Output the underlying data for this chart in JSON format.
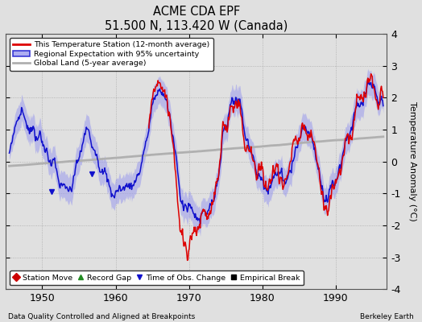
{
  "title": "ACME CDA EPF",
  "subtitle": "51.500 N, 113.420 W (Canada)",
  "xlabel_note": "Data Quality Controlled and Aligned at Breakpoints",
  "credit": "Berkeley Earth",
  "ylabel": "Temperature Anomaly (°C)",
  "xlim": [
    1945,
    1997
  ],
  "ylim": [
    -4,
    4
  ],
  "yticks": [
    -4,
    -3,
    -2,
    -1,
    0,
    1,
    2,
    3,
    4
  ],
  "xticks": [
    1950,
    1960,
    1970,
    1980,
    1990
  ],
  "bg_color": "#e0e0e0",
  "plot_bg_color": "#e0e0e0",
  "station_color": "#dd0000",
  "regional_color": "#1111cc",
  "regional_fill_color": "#9999ee",
  "global_color": "#b0b0b0",
  "legend_items": [
    {
      "label": "This Temperature Station (12-month average)"
    },
    {
      "label": "Regional Expectation with 95% uncertainty"
    },
    {
      "label": "Global Land (5-year average)"
    }
  ],
  "marker_items": [
    {
      "label": "Station Move",
      "color": "#cc0000",
      "marker": "D"
    },
    {
      "label": "Record Gap",
      "color": "#228B22",
      "marker": "^"
    },
    {
      "label": "Time of Obs. Change",
      "color": "#1111cc",
      "marker": "v"
    },
    {
      "label": "Empirical Break",
      "color": "#000000",
      "marker": "s"
    }
  ],
  "obs_change_years": [
    1951.3,
    1956.8
  ],
  "station_start_year": 1964.5
}
